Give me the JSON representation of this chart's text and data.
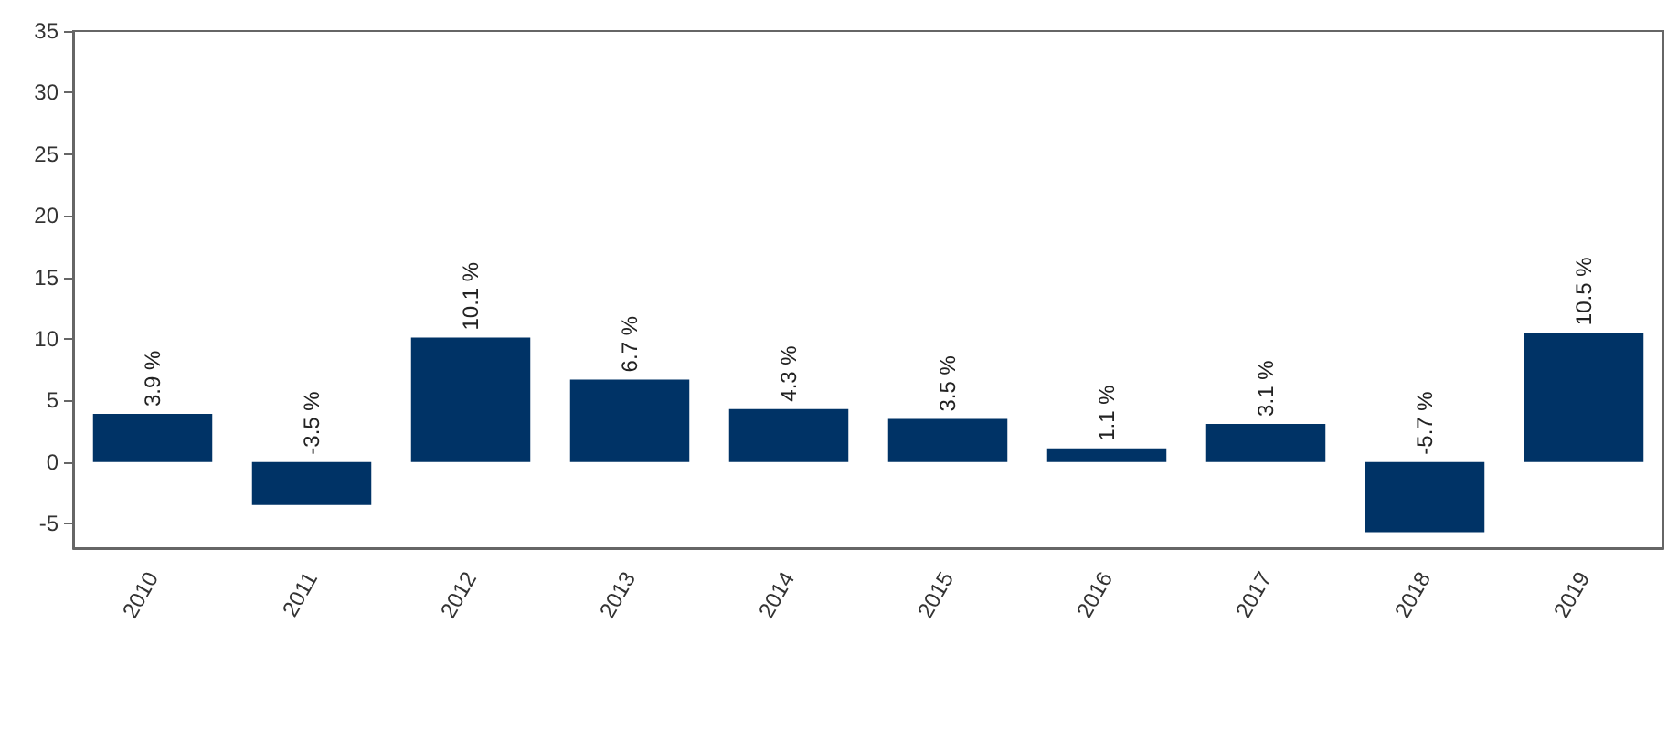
{
  "chart_data": {
    "type": "bar",
    "categories": [
      "2010",
      "2011",
      "2012",
      "2013",
      "2014",
      "2015",
      "2016",
      "2017",
      "2018",
      "2019"
    ],
    "values": [
      3.9,
      -3.5,
      10.1,
      6.7,
      4.3,
      3.5,
      1.1,
      3.1,
      -5.7,
      10.5
    ],
    "value_labels": [
      "3.9 %",
      "-3.5 %",
      "10.1 %",
      "6.7 %",
      "4.3 %",
      "3.5 %",
      "1.1 %",
      "3.1 %",
      "-5.7 %",
      "10.5 %"
    ],
    "color": "#003366",
    "ylim": [
      -7,
      35
    ],
    "yticks": [
      -5,
      0,
      5,
      10,
      15,
      20,
      25,
      30,
      35
    ],
    "grid": false
  }
}
